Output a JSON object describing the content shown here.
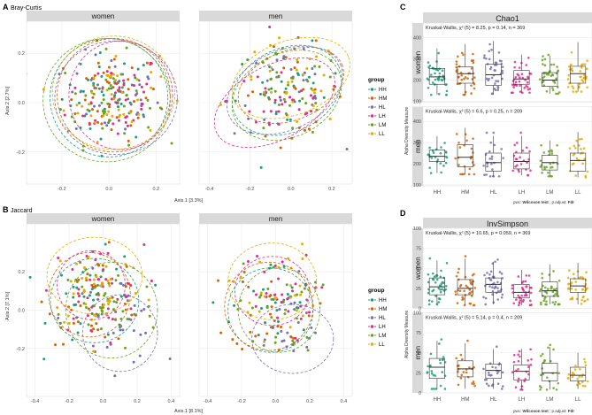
{
  "colors": {
    "HH": "#1b9e77",
    "HM": "#d95f02",
    "HL": "#7570b3",
    "LH": "#e7298a",
    "LM": "#66a61e",
    "LL": "#e6ab02",
    "strip": "#d9d9d9",
    "grid": "#ebebeb"
  },
  "legend": {
    "title": "group",
    "items": [
      "HH",
      "HM",
      "HL",
      "LH",
      "LM",
      "LL"
    ]
  },
  "chart_data": [
    {
      "panel": "A",
      "title": "Bray-Curtis",
      "type": "scatter",
      "xlabel": "Axis.1   [3.3%]",
      "ylabel": "Axis.2   [2.7%]",
      "facets": [
        "women",
        "men"
      ],
      "facet_xlim": [
        [
          -0.35,
          0.3
        ],
        [
          -0.45,
          0.3
        ]
      ],
      "xticks": [
        [
          -0.2,
          0.0,
          0.2
        ],
        [
          -0.4,
          -0.2,
          0.0,
          0.2
        ]
      ],
      "ylim": [
        -0.33,
        0.33
      ],
      "yticks": [
        -0.2,
        0.0,
        0.2
      ],
      "ellipses": {
        "women": {
          "HH": [
            0.0,
            0.02,
            0.25,
            0.24,
            0
          ],
          "HM": [
            0.02,
            0.03,
            0.24,
            0.23,
            0
          ],
          "HL": [
            0.03,
            0.02,
            0.26,
            0.23,
            0
          ],
          "LH": [
            0.05,
            0.03,
            0.22,
            0.22,
            0
          ],
          "LM": [
            -0.01,
            0.01,
            0.27,
            0.25,
            0
          ],
          "LL": [
            0.02,
            0.04,
            0.26,
            0.23,
            0
          ]
        },
        "men": {
          "HH": [
            -0.02,
            0.05,
            0.28,
            0.17,
            25
          ],
          "HM": [
            0.0,
            0.07,
            0.27,
            0.14,
            22
          ],
          "HL": [
            -0.03,
            0.05,
            0.3,
            0.16,
            25
          ],
          "LH": [
            -0.08,
            0.0,
            0.32,
            0.15,
            28
          ],
          "LM": [
            -0.02,
            0.03,
            0.28,
            0.17,
            25
          ],
          "LL": [
            0.0,
            0.1,
            0.3,
            0.15,
            20
          ]
        }
      },
      "point_clouds": {
        "women": {
          "center": [
            0.0,
            0.02
          ],
          "spread": [
            0.1,
            0.09
          ],
          "n_per_group": 42
        },
        "men": {
          "center": [
            0.0,
            0.03
          ],
          "spread": [
            0.13,
            0.09
          ],
          "n_per_group": 30
        }
      }
    },
    {
      "panel": "B",
      "title": "Jaccard",
      "type": "scatter",
      "xlabel": "Axis.1   [8.1%]",
      "ylabel": "Axis.2   [7.1%]",
      "facets": [
        "women",
        "men"
      ],
      "facet_xlim": [
        [
          -0.45,
          0.45
        ],
        [
          -0.45,
          0.45
        ]
      ],
      "xticks": [
        [
          -0.4,
          -0.2,
          0.0,
          0.2,
          0.4
        ],
        [
          -0.4,
          -0.2,
          0.0,
          0.2,
          0.4
        ]
      ],
      "ylim": [
        -0.45,
        0.45
      ],
      "yticks": [
        -0.2,
        0.0,
        0.2
      ],
      "ellipses": {
        "women": {
          "HH": [
            -0.05,
            0.05,
            0.26,
            0.22,
            0
          ],
          "HM": [
            -0.08,
            0.08,
            0.24,
            0.22,
            0
          ],
          "HL": [
            0.1,
            -0.12,
            0.22,
            0.2,
            0
          ],
          "LH": [
            -0.07,
            0.13,
            0.2,
            0.18,
            0
          ],
          "LM": [
            0.05,
            0.0,
            0.27,
            0.25,
            0
          ],
          "LL": [
            -0.05,
            0.18,
            0.28,
            0.2,
            0
          ]
        },
        "men": {
          "HH": [
            -0.03,
            0.0,
            0.25,
            0.22,
            0
          ],
          "HM": [
            -0.04,
            0.02,
            0.26,
            0.23,
            0
          ],
          "HL": [
            0.1,
            -0.15,
            0.24,
            0.18,
            0
          ],
          "LH": [
            -0.02,
            0.1,
            0.22,
            0.18,
            0
          ],
          "LM": [
            0.02,
            0.0,
            0.24,
            0.22,
            0
          ],
          "LL": [
            -0.02,
            0.15,
            0.26,
            0.2,
            0
          ]
        }
      },
      "point_clouds": {
        "women": {
          "center": [
            0.0,
            0.05
          ],
          "spread": [
            0.14,
            0.12
          ],
          "n_per_group": 40
        },
        "men": {
          "center": [
            0.0,
            0.03
          ],
          "spread": [
            0.12,
            0.12
          ],
          "n_per_group": 28
        }
      }
    },
    {
      "panel": "C",
      "title": "Chao1",
      "type": "box",
      "ylabel": "Alpha Diversity Measure",
      "categories": [
        "HH",
        "HM",
        "HL",
        "LH",
        "LM",
        "LL"
      ],
      "ylim": [
        95,
        470
      ],
      "yticks": [
        100,
        200,
        300,
        400
      ],
      "footnote_label": "pwc:",
      "footnote_test": "Wilcoxon test",
      "footnote_adjust": "; p.adjust:",
      "footnote_method": "Fdr",
      "rows": [
        {
          "facet": "women",
          "stat": "Kruskal-Wallis,  χ² (5) = 8.25,  p = 0.14,  n = 369",
          "stats": [
            [
              130,
              180,
              215,
              255,
              350
            ],
            [
              130,
              185,
              230,
              262,
              370
            ],
            [
              130,
              175,
              225,
              275,
              385
            ],
            [
              140,
              180,
              205,
              245,
              320
            ],
            [
              135,
              170,
              200,
              235,
              315
            ],
            [
              145,
              185,
              230,
              265,
              380
            ]
          ]
        },
        {
          "facet": "men",
          "stat": "Kruskal-Wallis,  χ² (5) = 6.6,  p = 0.25,  n = 209",
          "stats": [
            [
              155,
              210,
              235,
              265,
              330
            ],
            [
              150,
              185,
              230,
              290,
              370
            ],
            [
              140,
              165,
              205,
              250,
              330
            ],
            [
              145,
              175,
              210,
              250,
              330
            ],
            [
              140,
              170,
              205,
              240,
              310
            ],
            [
              135,
              165,
              215,
              250,
              350
            ]
          ]
        }
      ]
    },
    {
      "panel": "D",
      "title": "InvSimpson",
      "type": "box",
      "ylabel": "Alpha Diversity Measure",
      "categories": [
        "HH",
        "HM",
        "HL",
        "LH",
        "LM",
        "LL"
      ],
      "ylim": [
        0,
        100
      ],
      "yticks": [
        0,
        25,
        50,
        75,
        100
      ],
      "footnote_label": "pwc:",
      "footnote_test": "Wilcoxon test",
      "footnote_adjust": "; p.adjust:",
      "footnote_method": "Fdr",
      "rows": [
        {
          "facet": "women",
          "stat": "Kruskal-Wallis,  χ² (5) = 10.65,  p = 0.059,  n = 369",
          "stats": [
            [
              5,
              17,
              27,
              38,
              60
            ],
            [
              4,
              17,
              25,
              36,
              62
            ],
            [
              5,
              20,
              30,
              38,
              58
            ],
            [
              4,
              13,
              20,
              30,
              48
            ],
            [
              5,
              15,
              22,
              33,
              55
            ],
            [
              5,
              20,
              28,
              37,
              57
            ]
          ]
        },
        {
          "facet": "men",
          "stat": "Kruskal-Wallis,  χ² (5) = 5.14,  p = 0.4,  n = 209",
          "stats": [
            [
              5,
              18,
              32,
              43,
              65
            ],
            [
              5,
              20,
              30,
              40,
              62
            ],
            [
              5,
              18,
              28,
              36,
              55
            ],
            [
              4,
              16,
              27,
              35,
              55
            ],
            [
              4,
              15,
              25,
              37,
              57
            ],
            [
              5,
              15,
              22,
              32,
              50
            ]
          ]
        }
      ]
    }
  ]
}
